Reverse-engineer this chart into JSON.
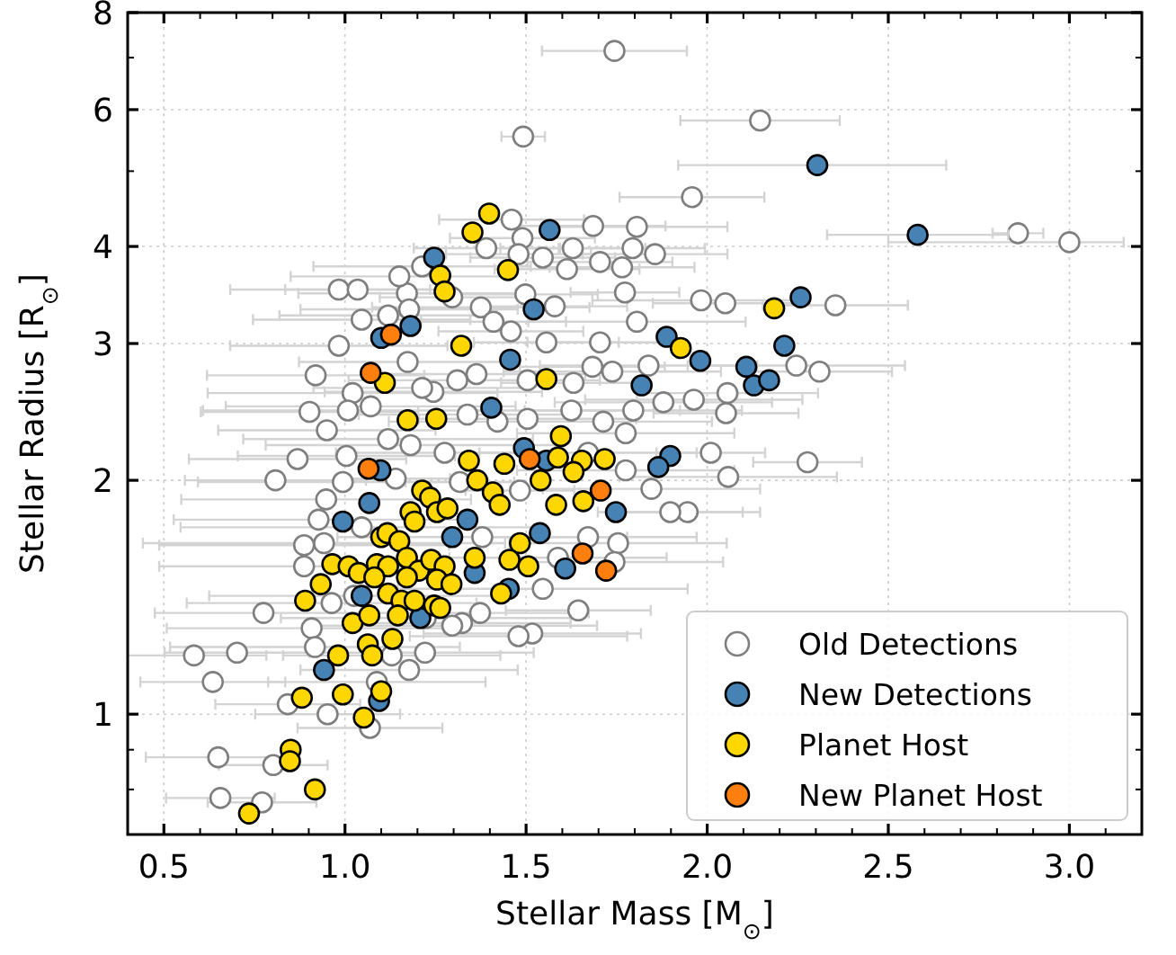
{
  "chart_data": {
    "type": "scatter",
    "xlabel": "Stellar Mass [M$_{⊙}$]",
    "ylabel": "Stellar Radius [R$_{⊙}$]",
    "log": "y",
    "grid": true,
    "legend": "bottom right",
    "marker": "circle",
    "xlim": [
      0.4,
      3.2
    ],
    "ylim": [
      0.7,
      8
    ],
    "xticks": [
      {
        "value": 0.4,
        "label": null
      },
      {
        "value": 0.5,
        "label": "0.5"
      },
      {
        "value": 0.6,
        "label": null
      },
      {
        "value": 0.7,
        "label": null
      },
      {
        "value": 0.8,
        "label": null
      },
      {
        "value": 0.9,
        "label": null
      },
      {
        "value": 1.0,
        "label": "1.0"
      },
      {
        "value": 1.1,
        "label": null
      },
      {
        "value": 1.2,
        "label": null
      },
      {
        "value": 1.3,
        "label": null
      },
      {
        "value": 1.4,
        "label": null
      },
      {
        "value": 1.5,
        "label": "1.5"
      },
      {
        "value": 1.6,
        "label": null
      },
      {
        "value": 1.7,
        "label": null
      },
      {
        "value": 1.8,
        "label": null
      },
      {
        "value": 1.9,
        "label": null
      },
      {
        "value": 2.0,
        "label": "2.0"
      },
      {
        "value": 2.1,
        "label": null
      },
      {
        "value": 2.2,
        "label": null
      },
      {
        "value": 2.3,
        "label": null
      },
      {
        "value": 2.4,
        "label": null
      },
      {
        "value": 2.5,
        "label": "2.5"
      },
      {
        "value": 2.6,
        "label": null
      },
      {
        "value": 2.7,
        "label": null
      },
      {
        "value": 2.8,
        "label": null
      },
      {
        "value": 2.9,
        "label": null
      },
      {
        "value": 3.0,
        "label": "3.0"
      },
      {
        "value": 3.1,
        "label": null
      },
      {
        "value": 3.2,
        "label": null
      }
    ],
    "yticks": [
      {
        "value": 0.8,
        "label": null
      },
      {
        "value": 0.9,
        "label": null
      },
      1,
      2,
      3,
      4,
      {
        "value": 5,
        "label": null
      },
      6,
      {
        "value": 7,
        "label": null
      },
      8
    ],
    "series": [
      {
        "name": "Old Detections",
        "color": "#ffffff",
        "x": [
          1.744,
          2.146,
          1.492,
          1.958,
          2.858,
          3.0,
          1.685,
          1.806,
          1.794,
          1.856,
          1.704,
          1.765,
          1.613,
          1.773,
          2.05,
          1.983,
          2.354,
          2.246,
          2.31,
          2.056,
          2.052,
          2.01,
          2.277,
          2.058,
          1.946,
          1.898,
          1.846,
          1.644,
          1.517,
          1.479,
          0.983,
          1.035,
          0.983,
          0.919,
          0.902,
          0.95,
          0.869,
          0.808,
          1.004,
          0.948,
          0.927,
          0.887,
          0.887,
          0.775,
          0.583,
          0.702,
          0.635,
          0.842,
          0.952,
          1.069,
          0.65,
          0.802,
          0.656,
          0.771,
          0.908,
          0.917,
          1.177,
          1.221,
          1.323,
          1.373,
          1.46,
          1.49,
          1.479,
          1.39,
          1.546,
          1.629,
          1.579,
          1.498,
          1.375,
          1.296,
          1.171,
          1.213,
          1.15,
          1.046,
          1.119,
          1.177,
          1.458,
          1.41,
          1.556,
          1.704,
          1.806,
          1.838,
          1.738,
          1.683,
          1.631,
          1.504,
          1.363,
          1.31,
          1.244,
          1.213,
          1.173,
          1.021,
          1.071,
          1.008,
          1.119,
          1.181,
          1.275,
          1.338,
          1.421,
          1.504,
          1.625,
          1.713,
          1.796,
          1.879,
          1.963,
          1.775,
          1.671,
          1.775,
          1.483,
          1.317,
          1.14,
          0.994,
          1.046,
          0.942,
          0.963,
          1.025,
          1.379,
          1.546,
          1.671,
          1.588,
          1.223,
          1.296,
          1.129,
          1.088,
          1.754,
          1.744
        ],
        "values": [
          7.14,
          5.81,
          5.54,
          4.63,
          4.16,
          4.05,
          4.25,
          4.24,
          3.98,
          3.91,
          3.82,
          3.76,
          3.74,
          3.49,
          3.38,
          3.41,
          3.36,
          2.81,
          2.76,
          2.59,
          2.44,
          2.17,
          2.11,
          2.02,
          1.82,
          1.82,
          1.95,
          1.36,
          1.27,
          1.26,
          3.52,
          3.52,
          2.98,
          2.73,
          2.45,
          2.32,
          2.13,
          2.0,
          2.15,
          1.89,
          1.78,
          1.65,
          1.55,
          1.35,
          1.19,
          1.2,
          1.1,
          1.03,
          1.0,
          0.96,
          0.88,
          0.86,
          0.78,
          0.77,
          1.29,
          1.22,
          1.14,
          1.2,
          1.31,
          1.35,
          4.33,
          4.1,
          3.91,
          3.98,
          3.87,
          3.98,
          3.35,
          3.47,
          3.34,
          3.44,
          3.48,
          3.77,
          3.66,
          3.22,
          3.26,
          3.32,
          3.11,
          3.2,
          3.01,
          3.01,
          3.2,
          2.81,
          2.76,
          2.8,
          2.67,
          2.69,
          2.74,
          2.69,
          2.6,
          2.63,
          2.84,
          2.59,
          2.49,
          2.46,
          2.26,
          2.22,
          2.17,
          2.43,
          2.38,
          2.4,
          2.46,
          2.38,
          2.46,
          2.52,
          2.54,
          2.3,
          2.17,
          2.06,
          1.94,
          1.99,
          2.01,
          1.99,
          1.74,
          1.66,
          1.39,
          1.42,
          1.69,
          1.45,
          1.69,
          1.59,
          1.33,
          1.3,
          1.19,
          1.1,
          1.66,
          1.57
        ],
        "xerrors": [
          0.2,
          0.22,
          0.06,
          0.2,
          0.07,
          [
            2.5,
            3.15
          ],
          0.2,
          0.25,
          0.2,
          0.2,
          0.2,
          0.2,
          0.2,
          0.15,
          0.2,
          0.3,
          0.2,
          0.3,
          0.2,
          0.25,
          0.2,
          0.15,
          0.15,
          0.3,
          0.2,
          0.2,
          0.3,
          0.2,
          0.3,
          0.3,
          0.3,
          0.2,
          0.3,
          0.3,
          0.3,
          0.3,
          0.3,
          0.25,
          0.3,
          0.4,
          0.4,
          0.4,
          0.4,
          0.3,
          0.2,
          0.2,
          0.2,
          0.2,
          0.2,
          0.2,
          0.2,
          0.15,
          0.15,
          0.15,
          0.4,
          0.4,
          0.3,
          0.3,
          0.3,
          0.3,
          0.2,
          0.2,
          0.2,
          0.2,
          0.2,
          0.2,
          0.2,
          0.2,
          0.3,
          0.2,
          0.3,
          0.3,
          0.3,
          0.3,
          0.3,
          0.3,
          0.2,
          0.2,
          0.2,
          0.2,
          0.3,
          0.3,
          0.3,
          0.2,
          0.2,
          0.2,
          0.3,
          0.3,
          0.3,
          0.3,
          0.3,
          0.4,
          0.4,
          0.4,
          0.4,
          0.4,
          0.3,
          0.3,
          0.3,
          0.3,
          0.3,
          0.3,
          0.3,
          0.3,
          0.3,
          0.3,
          0.3,
          0.3,
          0.15,
          0.15,
          0.15,
          0.4,
          0.5,
          0.5,
          0.4,
          0.4,
          0.4,
          0.4,
          0.3,
          0.3,
          0.4,
          0.4,
          0.3,
          0.3,
          0.3,
          0.3
        ]
      },
      {
        "name": "New Detections",
        "color": "#4682b4",
        "x": [
          2.304,
          2.581,
          1.565,
          1.246,
          1.521,
          1.181,
          1.1,
          1.456,
          1.888,
          1.981,
          2.108,
          2.213,
          2.258,
          2.129,
          2.171,
          1.819,
          1.404,
          1.494,
          1.556,
          1.098,
          1.898,
          1.865,
          1.067,
          0.994,
          1.338,
          1.296,
          1.748,
          1.538,
          1.608,
          1.358,
          1.452,
          1.046,
          1.208,
          0.942,
          1.094
        ],
        "values": [
          5.09,
          4.14,
          4.2,
          3.87,
          3.32,
          3.16,
          3.05,
          2.86,
          3.06,
          2.85,
          2.8,
          2.98,
          3.44,
          2.65,
          2.69,
          2.65,
          2.48,
          2.2,
          2.12,
          2.06,
          2.15,
          2.08,
          1.87,
          1.77,
          1.78,
          1.69,
          1.82,
          1.71,
          1.54,
          1.52,
          1.45,
          1.42,
          1.33,
          1.14,
          1.04
        ],
        "xerrors": [
          [
            1.92,
            2.66
          ],
          0.25,
          null,
          null,
          null,
          null,
          null,
          null,
          null,
          null,
          null,
          null,
          null,
          null,
          null,
          null,
          null,
          null,
          null,
          null,
          null,
          null,
          null,
          null,
          null,
          null,
          null,
          null,
          null,
          null,
          null,
          null,
          null,
          null,
          null
        ]
      },
      {
        "name": "Planet Host",
        "color": "#ffd700",
        "x": [
          1.398,
          1.352,
          1.45,
          1.263,
          1.275,
          1.321,
          1.556,
          1.11,
          2.185,
          1.927,
          1.173,
          1.252,
          1.596,
          1.588,
          1.654,
          1.717,
          1.44,
          1.342,
          1.365,
          1.54,
          1.631,
          1.408,
          1.213,
          1.235,
          1.181,
          1.254,
          1.283,
          1.427,
          1.583,
          1.658,
          1.192,
          1.1,
          1.117,
          1.15,
          1.483,
          0.965,
          1.01,
          1.038,
          1.088,
          1.119,
          1.171,
          1.204,
          1.238,
          1.275,
          1.358,
          1.454,
          1.506,
          0.933,
          1.171,
          1.254,
          1.294,
          1.081,
          1.119,
          1.156,
          1.192,
          1.246,
          1.263,
          1.431,
          0.89,
          1.021,
          1.067,
          1.146,
          1.131,
          1.063,
          1.075,
          0.981,
          0.881,
          0.994,
          1.1,
          1.052,
          0.85,
          0.848,
          0.917,
          0.735
        ],
        "values": [
          4.41,
          4.17,
          3.73,
          3.67,
          3.5,
          2.98,
          2.7,
          2.67,
          3.33,
          2.96,
          2.39,
          2.4,
          2.28,
          2.14,
          2.12,
          2.13,
          2.1,
          2.12,
          2.0,
          2.0,
          2.05,
          1.93,
          1.94,
          1.9,
          1.82,
          1.82,
          1.84,
          1.86,
          1.86,
          1.88,
          1.77,
          1.69,
          1.71,
          1.67,
          1.66,
          1.56,
          1.55,
          1.52,
          1.56,
          1.55,
          1.59,
          1.53,
          1.58,
          1.55,
          1.59,
          1.58,
          1.55,
          1.47,
          1.5,
          1.49,
          1.47,
          1.5,
          1.43,
          1.4,
          1.4,
          1.38,
          1.37,
          1.43,
          1.4,
          1.31,
          1.34,
          1.34,
          1.25,
          1.23,
          1.19,
          1.19,
          1.05,
          1.06,
          1.07,
          0.99,
          0.9,
          0.87,
          0.8,
          0.745
        ]
      },
      {
        "name": "New Planet Host",
        "color": "#ff7f0e",
        "x": [
          1.127,
          1.071,
          1.065,
          1.51,
          1.706,
          1.656,
          1.721
        ],
        "values": [
          3.08,
          2.75,
          2.07,
          2.13,
          1.94,
          1.61,
          1.53
        ]
      }
    ]
  }
}
